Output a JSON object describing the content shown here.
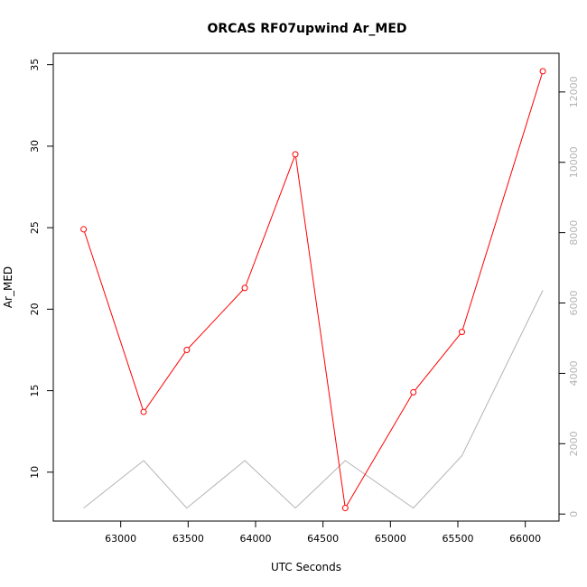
{
  "chart_data": {
    "type": "line",
    "title": "ORCAS RF07upwind Ar_MED",
    "xlabel": "UTC Seconds",
    "ylabel": "Ar_MED",
    "xlim": [
      62500,
      66250
    ],
    "ylim": [
      7.0,
      35.7
    ],
    "y2lim": [
      -200,
      13100
    ],
    "x_ticks": [
      63000,
      63500,
      64000,
      64500,
      65000,
      65500,
      66000
    ],
    "y_ticks": [
      10,
      15,
      20,
      25,
      30,
      35
    ],
    "y2_ticks": [
      0,
      2000,
      4000,
      6000,
      8000,
      10000,
      12000
    ],
    "grid": false,
    "series": [
      {
        "axis": "left",
        "color": "#ff0000",
        "markers": "open-circle",
        "x": [
          62725,
          63170,
          63490,
          63920,
          64295,
          64665,
          65170,
          65530,
          66130
        ],
        "y": [
          24.9,
          13.7,
          17.5,
          21.3,
          29.5,
          7.8,
          14.9,
          18.6,
          34.6
        ]
      },
      {
        "axis": "right",
        "color": "#b3b3b3",
        "markers": "none",
        "x": [
          62725,
          63170,
          63490,
          63920,
          64295,
          64665,
          65170,
          65530,
          66130
        ],
        "y": [
          170,
          1520,
          170,
          1520,
          170,
          1520,
          170,
          1660,
          6360
        ]
      }
    ]
  }
}
